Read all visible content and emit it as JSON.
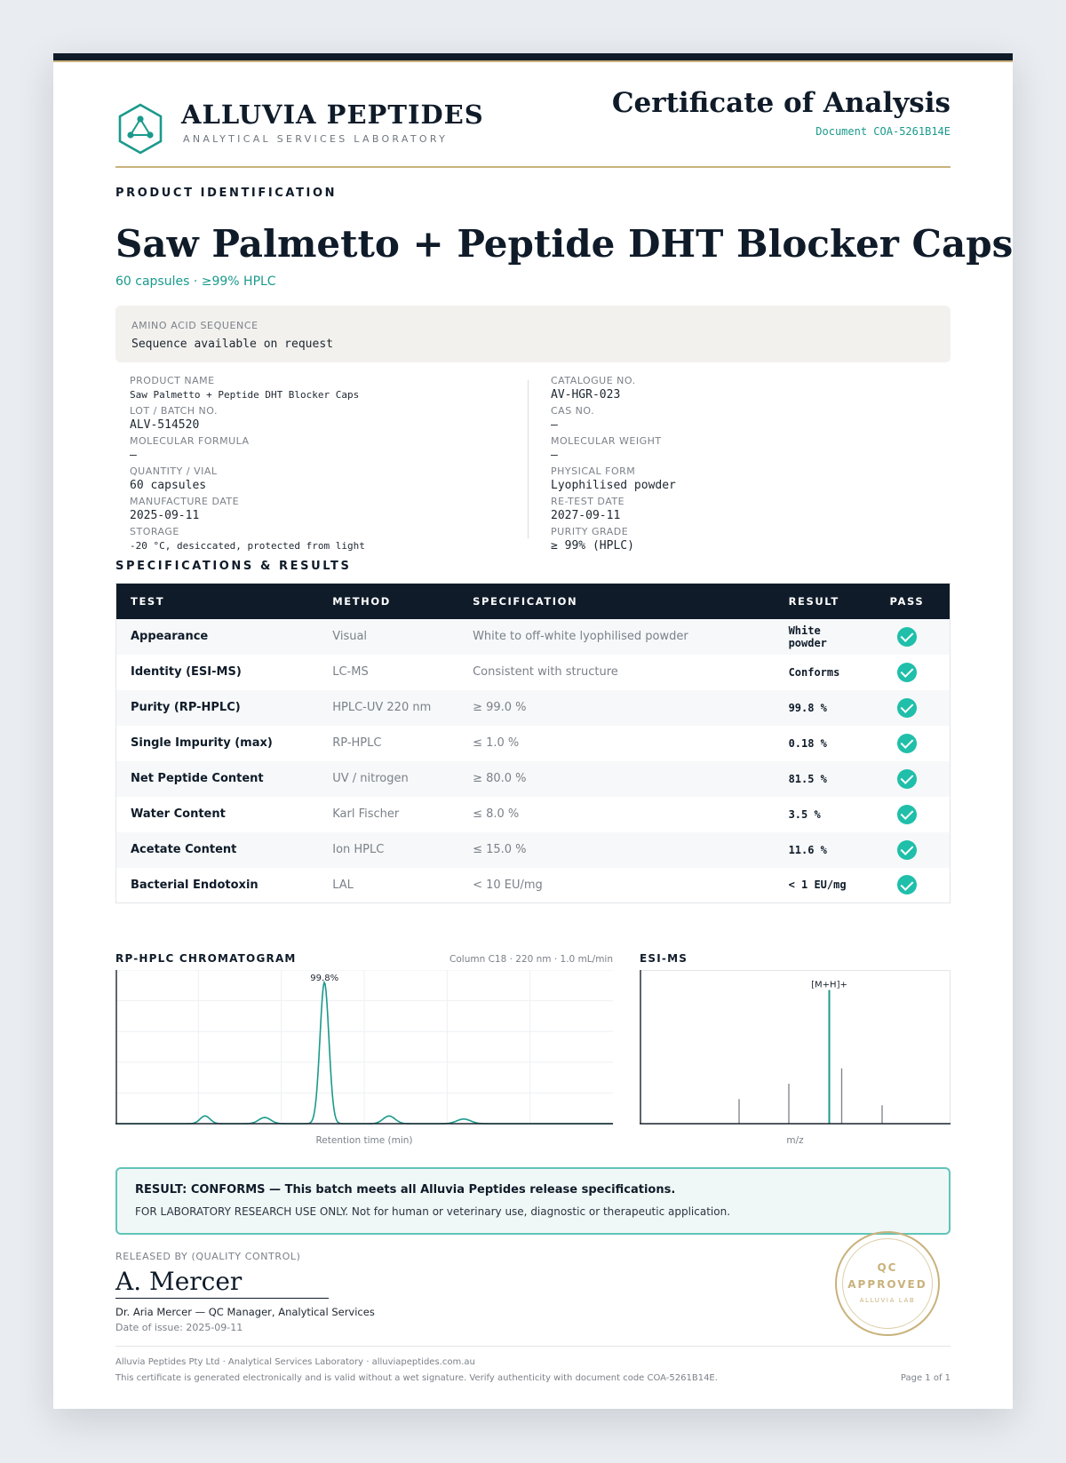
{
  "header": {
    "brand": "ALLUVIA PEPTIDES",
    "brand_sub": "ANALYTICAL SERVICES LABORATORY",
    "doc_title": "Certificate of Analysis",
    "doc_code": "Document COA-5261B14E"
  },
  "product": {
    "section_label": "PRODUCT IDENTIFICATION",
    "title": "Saw Palmetto + Peptide DHT Blocker Caps",
    "subtitle": "60 capsules · ≥99% HPLC",
    "sequence_label": "AMINO ACID SEQUENCE",
    "sequence_value": "Sequence available on request"
  },
  "fields_left": [
    {
      "label": "PRODUCT NAME",
      "value": "Saw Palmetto + Peptide DHT Blocker Caps"
    },
    {
      "label": "LOT / BATCH NO.",
      "value": "ALV-514520"
    },
    {
      "label": "MOLECULAR FORMULA",
      "value": "—"
    },
    {
      "label": "QUANTITY / VIAL",
      "value": "60 capsules"
    },
    {
      "label": "MANUFACTURE DATE",
      "value": "2025-09-11"
    },
    {
      "label": "STORAGE",
      "value": "-20 °C, desiccated, protected from light"
    }
  ],
  "fields_right": [
    {
      "label": "CATALOGUE NO.",
      "value": "AV-HGR-023"
    },
    {
      "label": "CAS NO.",
      "value": "—"
    },
    {
      "label": "MOLECULAR WEIGHT",
      "value": "—"
    },
    {
      "label": "PHYSICAL FORM",
      "value": "Lyophilised powder"
    },
    {
      "label": "RE-TEST DATE",
      "value": "2027-09-11"
    },
    {
      "label": "PURITY GRADE",
      "value": "≥ 99% (HPLC)"
    }
  ],
  "specs": {
    "section_label": "SPECIFICATIONS & RESULTS",
    "headers": [
      "TEST",
      "METHOD",
      "SPECIFICATION",
      "RESULT",
      "PASS"
    ],
    "rows": [
      {
        "test": "Appearance",
        "method": "Visual",
        "spec": "White to off-white lyophilised powder",
        "result": "White powder"
      },
      {
        "test": "Identity (ESI-MS)",
        "method": "LC-MS",
        "spec": "Consistent with structure",
        "result": "Conforms"
      },
      {
        "test": "Purity (RP-HPLC)",
        "method": "HPLC-UV 220 nm",
        "spec": "≥ 99.0 %",
        "result": "99.8 %"
      },
      {
        "test": "Single Impurity (max)",
        "method": "RP-HPLC",
        "spec": "≤ 1.0 %",
        "result": "0.18 %"
      },
      {
        "test": "Net Peptide Content",
        "method": "UV / nitrogen",
        "spec": "≥ 80.0 %",
        "result": "81.5 %"
      },
      {
        "test": "Water Content",
        "method": "Karl Fischer",
        "spec": "≤ 8.0 %",
        "result": "3.5 %"
      },
      {
        "test": "Acetate Content",
        "method": "Ion HPLC",
        "spec": "≤ 15.0 %",
        "result": "11.6 %"
      },
      {
        "test": "Bacterial Endotoxin",
        "method": "LAL",
        "spec": "< 10 EU/mg",
        "result": "< 1 EU/mg"
      }
    ]
  },
  "chromatogram": {
    "title": "RP-HPLC CHROMATOGRAM",
    "meta": "Column C18 · 220 nm · 1.0 mL/min",
    "x_caption": "Retention time (min)",
    "peak_label": "99.8%",
    "line_color": "#1a9a8c"
  },
  "esi": {
    "title": "ESI-MS",
    "x_caption": "m/z",
    "peak_label": "[M+H]+",
    "line_color": "#1a9a8c"
  },
  "chart_data": [
    {
      "type": "line",
      "title": "RP-HPLC CHROMATOGRAM",
      "xlabel": "Retention time (min)",
      "ylabel": "",
      "grid": true,
      "x_domain": [
        0,
        1
      ],
      "y_domain": [
        0,
        1
      ],
      "peaks": [
        {
          "x": 0.18,
          "height": 0.05,
          "width": 0.01
        },
        {
          "x": 0.3,
          "height": 0.04,
          "width": 0.012
        },
        {
          "x": 0.42,
          "height": 0.92,
          "width": 0.009
        },
        {
          "x": 0.55,
          "height": 0.05,
          "width": 0.012
        },
        {
          "x": 0.7,
          "height": 0.03,
          "width": 0.014
        }
      ],
      "annotation": "99.8%"
    },
    {
      "type": "bar",
      "title": "ESI-MS",
      "xlabel": "m/z",
      "ylabel": "",
      "grid": false,
      "x_domain": [
        0,
        1
      ],
      "y_domain": [
        0,
        1
      ],
      "sticks": [
        {
          "x": 0.32,
          "height": 0.16
        },
        {
          "x": 0.48,
          "height": 0.26
        },
        {
          "x": 0.61,
          "height": 0.87
        },
        {
          "x": 0.65,
          "height": 0.36
        },
        {
          "x": 0.78,
          "height": 0.12
        }
      ],
      "annotation": "[M+H]+"
    }
  ],
  "result": {
    "main": "RESULT: CONFORMS — This batch meets all Alluvia Peptides release specifications.",
    "note": "FOR LABORATORY RESEARCH USE ONLY. Not for human or veterinary use, diagnostic or therapeutic application."
  },
  "release": {
    "label": "RELEASED BY (QUALITY CONTROL)",
    "signature": "A. Mercer",
    "signer": "Dr. Aria Mercer — QC Manager, Analytical Services",
    "issue_date": "Date of issue: 2025-09-11"
  },
  "stamp": {
    "line1": "QC",
    "line2": "APPROVED",
    "line3": "ALLUVIA LAB"
  },
  "footer": {
    "line1": "Alluvia Peptides Pty Ltd · Analytical Services Laboratory · alluviapeptides.com.au",
    "line2": "This certificate is generated electronically and is valid without a wet signature. Verify authenticity with document code COA-5261B14E.",
    "page": "Page 1 of 1"
  },
  "colors": {
    "navy": "#0f1b29",
    "teal": "#1a9a8c",
    "gold": "#c9b27c",
    "check": "#1fbfaa"
  }
}
